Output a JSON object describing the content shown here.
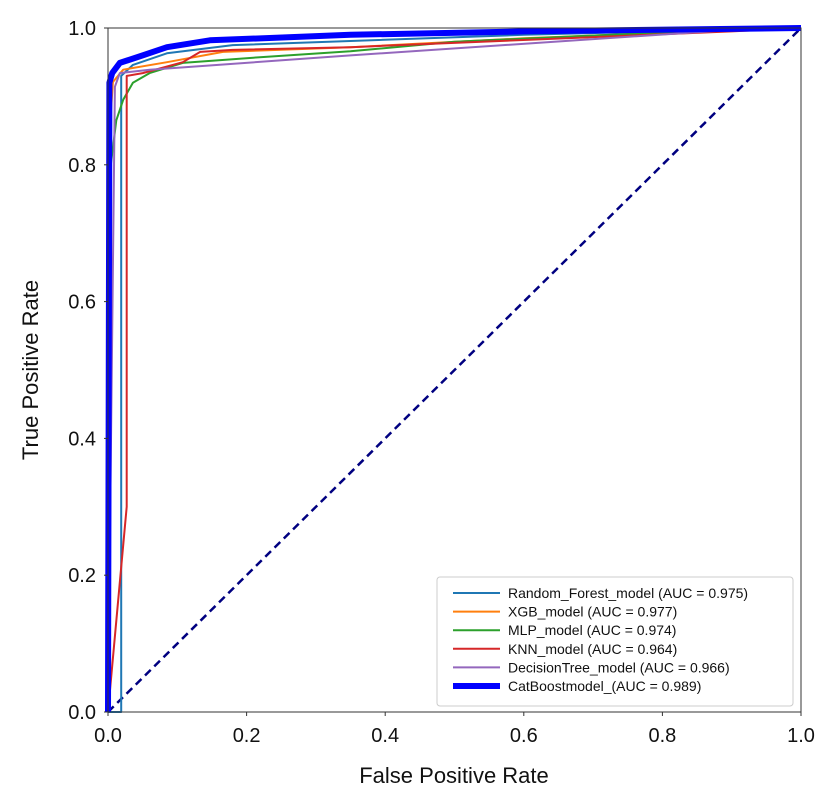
{
  "chart_data": {
    "type": "line",
    "title": "",
    "xlabel": "False Positive Rate",
    "ylabel": "True Positive Rate",
    "xlim": [
      0.0,
      1.0
    ],
    "ylim": [
      0.0,
      1.0
    ],
    "xticks": [
      "0.0",
      "0.2",
      "0.4",
      "0.6",
      "0.8",
      "1.0"
    ],
    "yticks": [
      "0.0",
      "0.2",
      "0.4",
      "0.6",
      "0.8",
      "1.0"
    ],
    "grid": false,
    "legend_position": "bottom-right",
    "series": [
      {
        "name": "Random_Forest_model (AUC = 0.975)",
        "color": "#1f77b4",
        "width": 2,
        "x": [
          0,
          0.019,
          0.019,
          0.036,
          0.085,
          0.18,
          0.35,
          0.6,
          0.8,
          1.0
        ],
        "y": [
          0,
          0,
          0.93,
          0.946,
          0.963,
          0.975,
          0.981,
          0.99,
          0.995,
          1.0
        ]
      },
      {
        "name": "XGB_model (AUC = 0.977)",
        "color": "#ff7f0e",
        "width": 2,
        "x": [
          0,
          0.003,
          0.007,
          0.022,
          0.085,
          0.166,
          0.35,
          0.6,
          0.9,
          1.0
        ],
        "y": [
          0,
          0.86,
          0.921,
          0.939,
          0.95,
          0.965,
          0.972,
          0.985,
          0.997,
          1.0
        ]
      },
      {
        "name": "MLP_model (AUC = 0.974)",
        "color": "#2ca02c",
        "width": 2,
        "x": [
          0,
          0.004,
          0.012,
          0.022,
          0.036,
          0.06,
          0.108,
          0.23,
          0.35,
          0.5,
          0.9,
          1.0
        ],
        "y": [
          0,
          0.8,
          0.865,
          0.895,
          0.92,
          0.934,
          0.949,
          0.958,
          0.966,
          0.98,
          0.998,
          1.0
        ]
      },
      {
        "name": "KNN_model (AUC = 0.964)",
        "color": "#d62728",
        "width": 2,
        "x": [
          0,
          0.027,
          0.027,
          0.05,
          0.108,
          0.133,
          0.18,
          0.35,
          0.9,
          1.0
        ],
        "y": [
          0,
          0.3,
          0.93,
          0.934,
          0.95,
          0.965,
          0.968,
          0.972,
          0.995,
          1.0
        ]
      },
      {
        "name": "DecisionTree_model (AUC = 0.966)",
        "color": "#9467bd",
        "width": 2,
        "x": [
          0,
          0.01,
          0.017,
          0.06,
          0.35,
          0.926
        ],
        "y": [
          0,
          0.914,
          0.934,
          0.939,
          0.96,
          0.999
        ]
      },
      {
        "name": "CatBoostmodel_(AUC = 0.989)",
        "color": "#0000ff",
        "width": 6,
        "x": [
          0,
          0.002,
          0.006,
          0.017,
          0.05,
          0.085,
          0.147,
          0.35,
          0.6,
          1.0
        ],
        "y": [
          0,
          0.92,
          0.934,
          0.949,
          0.96,
          0.972,
          0.982,
          0.99,
          0.995,
          1.0
        ]
      }
    ],
    "reference_line": {
      "x": [
        0,
        1
      ],
      "y": [
        0,
        1
      ],
      "color": "#000080",
      "style": "dashed"
    }
  }
}
